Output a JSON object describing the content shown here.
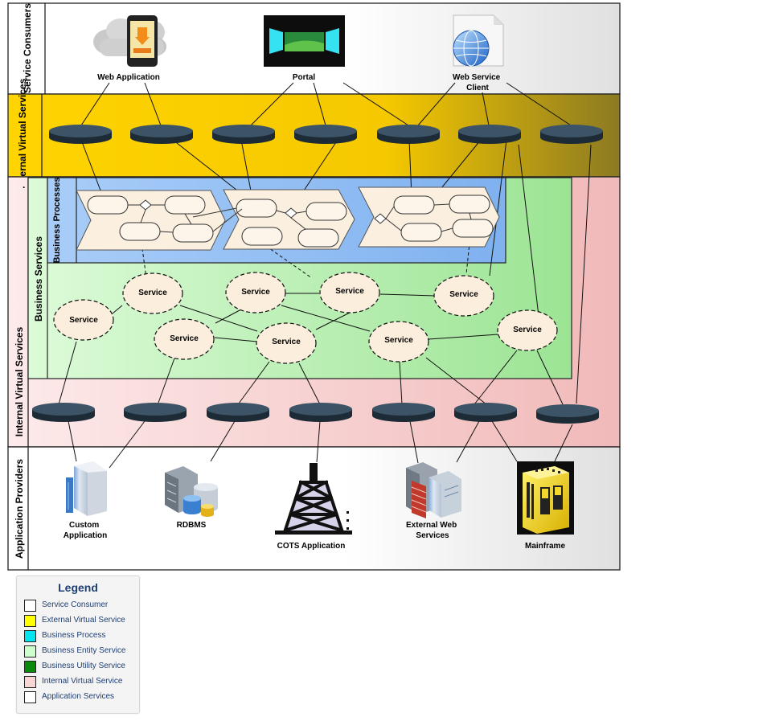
{
  "lanes": {
    "service_consumers": "Service Consumers",
    "external_virtual_services": "External Virtual Services",
    "internal_virtual_services": "Internal Virtual Services",
    "business_services": "Business Services",
    "business_processes": "Business Processes",
    "application_providers": "Application Providers",
    "dot_mark": "."
  },
  "consumers": {
    "web_application": "Web Application",
    "portal": "Portal",
    "web_service_client_line1": "Web Service",
    "web_service_client_line2": "Client"
  },
  "service_label": "Service",
  "providers": {
    "custom_line1": "Custom",
    "custom_line2": "Application",
    "rdbms": "RDBMS",
    "cots": "COTS Application",
    "ext_web_line1": "External Web",
    "ext_web_line2": "Services",
    "mainframe": "Mainframe"
  },
  "legend": {
    "title": "Legend",
    "items": [
      {
        "label": "Service Consumer",
        "color": "#ffffff"
      },
      {
        "label": "External Virtual Service",
        "color": "#ffff00"
      },
      {
        "label": "Business Process",
        "color": "#00e5f0"
      },
      {
        "label": "Business Entity Service",
        "color": "#ccffcc"
      },
      {
        "label": "Business Utility Service",
        "color": "#0a8a0a"
      },
      {
        "label": "Internal Virtual Service",
        "color": "#f9d6d6"
      },
      {
        "label": "Application Services",
        "color": "#ffffff"
      }
    ]
  }
}
